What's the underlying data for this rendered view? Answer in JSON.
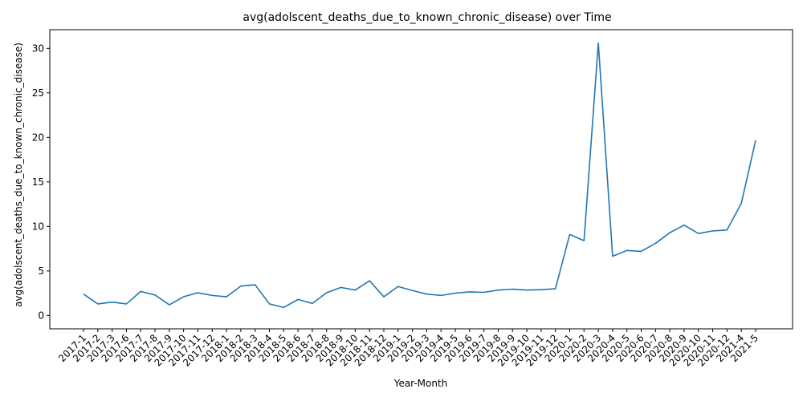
{
  "chart_data": {
    "type": "line",
    "title": "avg(adolscent_deaths_due_to_known_chronic_disease) over Time",
    "xlabel": "Year-Month",
    "ylabel": "avg(adolscent_deaths_due_to_known_chronic_disease)",
    "ylim": [
      -1.5,
      32.1
    ],
    "yticks": [
      0,
      5,
      10,
      15,
      20,
      25,
      30
    ],
    "grid": false,
    "legend": "none",
    "line_color": "#1f77b4",
    "x": [
      "2017-1",
      "2017-2",
      "2017-3",
      "2017-6",
      "2017-7",
      "2017-8",
      "2017-9",
      "2017-10",
      "2017-11",
      "2017-12",
      "2018-1",
      "2018-2",
      "2018-3",
      "2018-4",
      "2018-5",
      "2018-6",
      "2018-7",
      "2018-8",
      "2018-9",
      "2018-10",
      "2018-11",
      "2018-12",
      "2019-1",
      "2019-2",
      "2019-3",
      "2019-4",
      "2019-5",
      "2019-6",
      "2019-7",
      "2019-8",
      "2019-9",
      "2019-10",
      "2019-11",
      "2019-12",
      "2020-1",
      "2020-2",
      "2020-3",
      "2020-4",
      "2020-5",
      "2020-6",
      "2020-7",
      "2020-8",
      "2020-9",
      "2020-10",
      "2020-11",
      "2020-12",
      "2021-4",
      "2021-5"
    ],
    "series": [
      {
        "values": [
          2.4,
          1.3,
          1.5,
          1.3,
          2.7,
          2.3,
          1.2,
          2.1,
          2.55,
          2.25,
          2.1,
          3.3,
          3.45,
          1.3,
          0.9,
          1.8,
          1.35,
          2.55,
          3.15,
          2.85,
          3.9,
          2.1,
          3.25,
          2.8,
          2.4,
          2.25,
          2.5,
          2.65,
          2.6,
          2.85,
          2.95,
          2.85,
          2.9,
          3.0,
          9.1,
          8.4,
          30.6,
          6.65,
          7.3,
          7.2,
          8.1,
          9.3,
          10.15,
          9.2,
          9.5,
          9.6,
          12.6,
          19.65
        ]
      }
    ]
  }
}
